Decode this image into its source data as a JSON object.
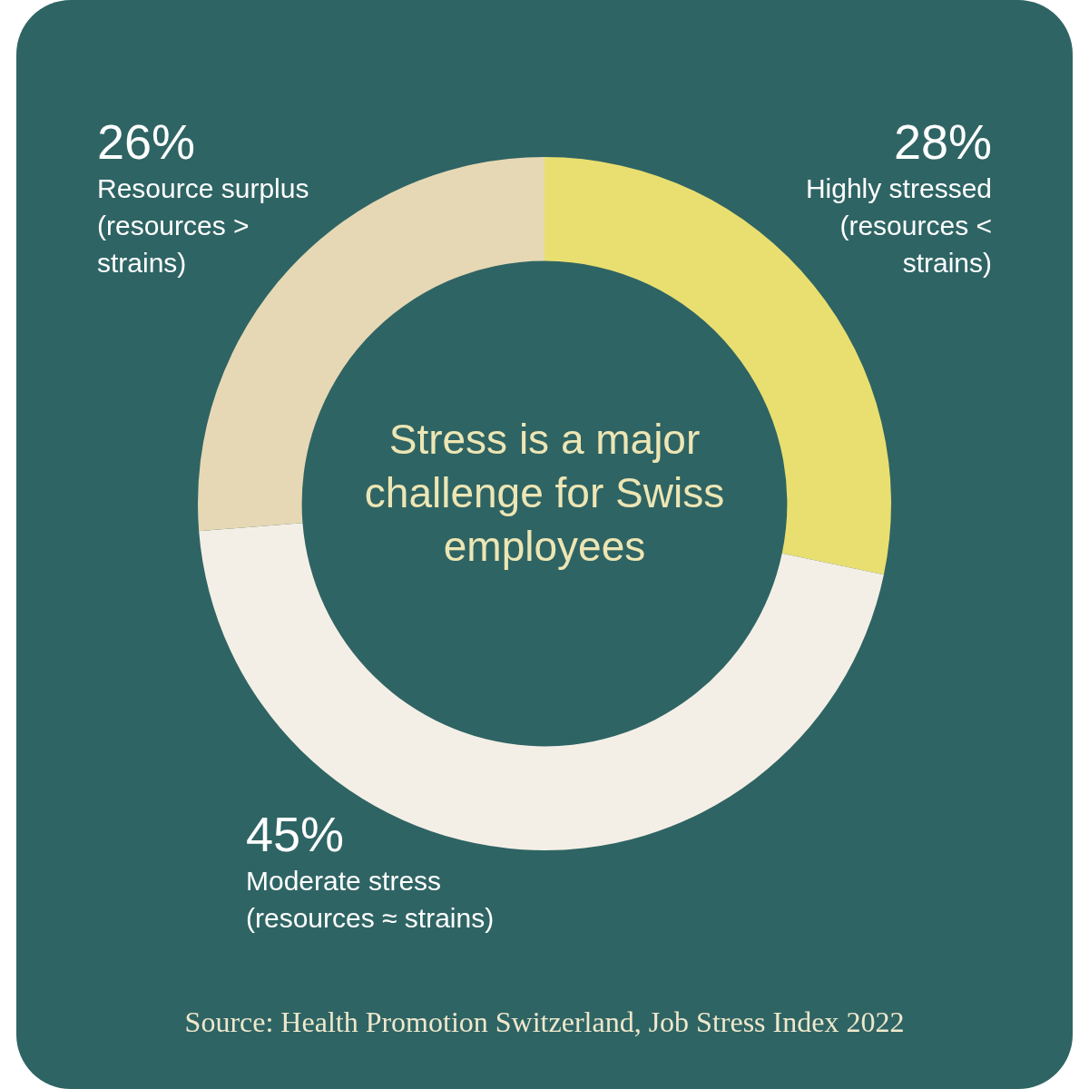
{
  "chart_data": {
    "type": "donut",
    "title": "Stress is a major challenge for Swiss employees",
    "categories": [
      "Highly stressed (resources < strains)",
      "Moderate stress (resources ≈ strains)",
      "Resource surplus (resources > strains)"
    ],
    "values": [
      28,
      45,
      26
    ],
    "value_labels": [
      "28%",
      "45%",
      "26%"
    ],
    "colors": [
      "#e9df70",
      "#f4efe6",
      "#e6d8b4"
    ],
    "annotations": [
      "Source: Health Promotion Switzerland, Job Stress Index 2022"
    ]
  }
}
